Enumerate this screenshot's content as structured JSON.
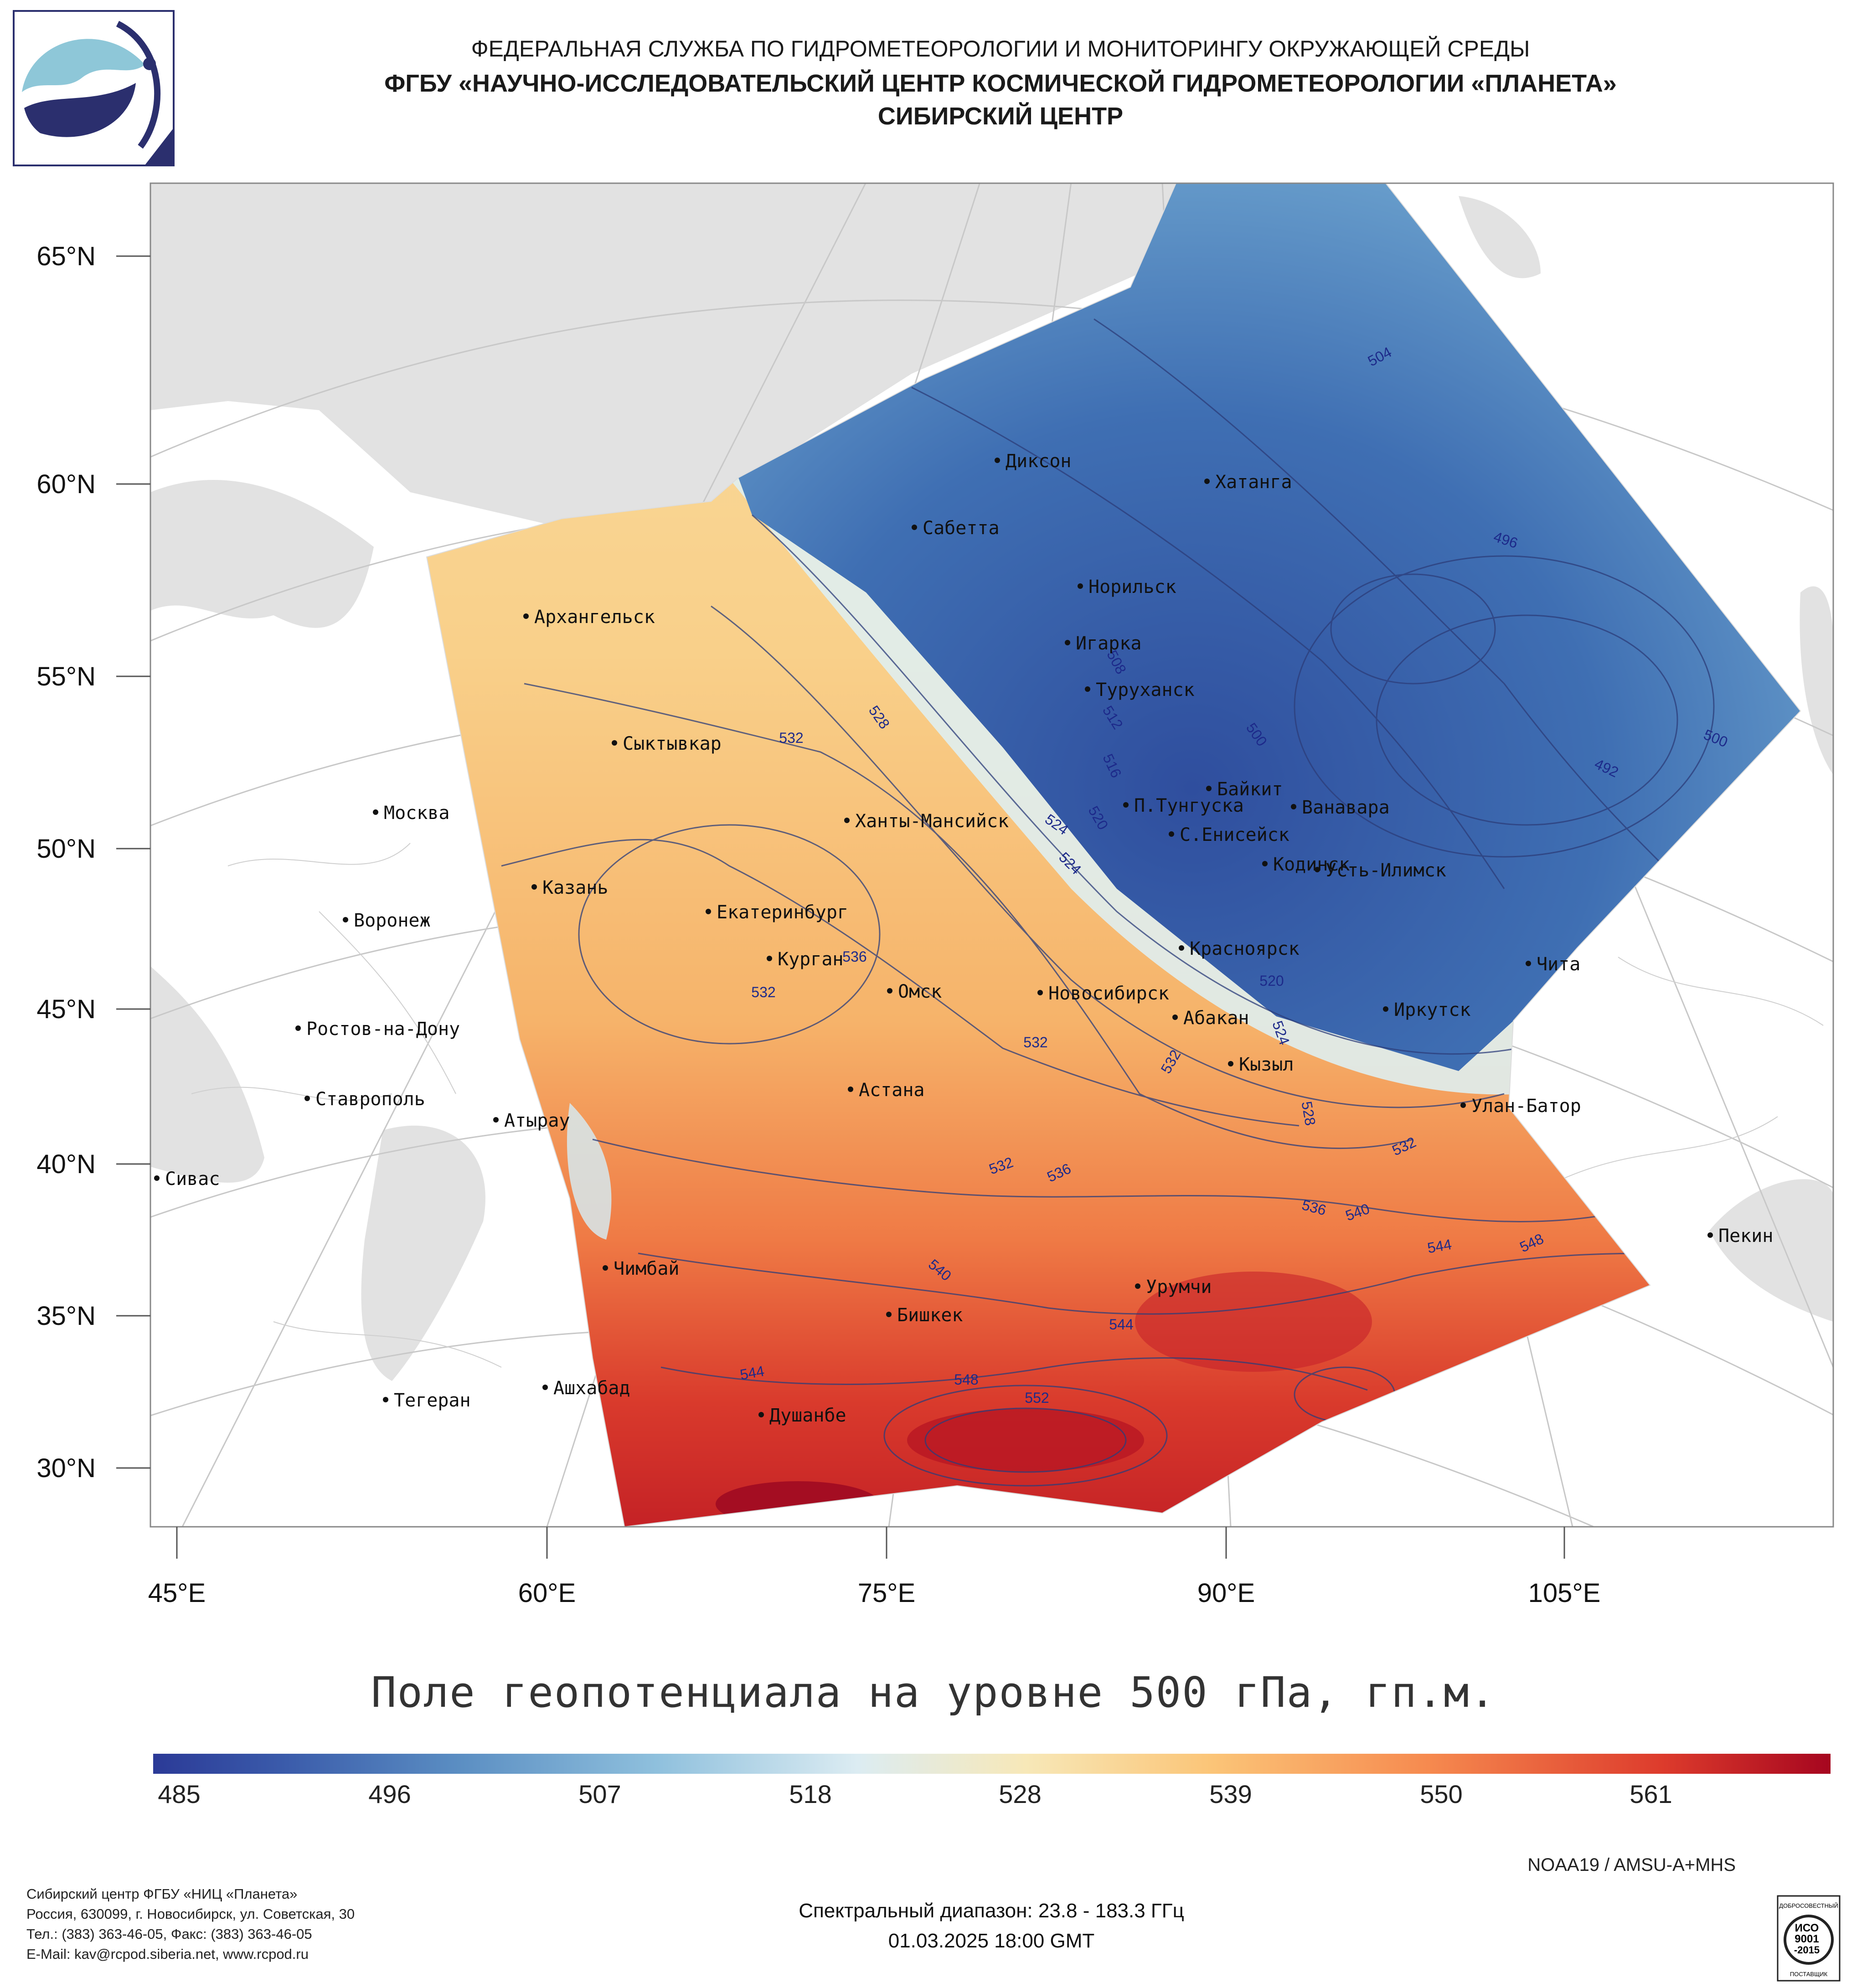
{
  "header": {
    "line1": "ФЕДЕРАЛЬНАЯ СЛУЖБА ПО ГИДРОМЕТЕОРОЛОГИИ И МОНИТОРИНГУ ОКРУЖАЮЩЕЙ СРЕДЫ",
    "line2": "ФГБУ «НАУЧНО-ИССЛЕДОВАТЕЛЬСКИЙ ЦЕНТР КОСМИЧЕСКОЙ ГИДРОМЕТЕОРОЛОГИИ «ПЛАНЕТА»",
    "line3": "СИБИРСКИЙ ЦЕНТР"
  },
  "axes": {
    "lat_labels": [
      "65°N",
      "60°N",
      "55°N",
      "50°N",
      "45°N",
      "40°N",
      "35°N",
      "30°N"
    ],
    "lon_labels": [
      "45°E",
      "60°E",
      "75°E",
      "90°E",
      "105°E"
    ]
  },
  "cities": [
    {
      "name": "Диксон"
    },
    {
      "name": "Хатанга"
    },
    {
      "name": "Сабетта"
    },
    {
      "name": "Архангельск"
    },
    {
      "name": "Норильск"
    },
    {
      "name": "Игарка"
    },
    {
      "name": "Туруханск"
    },
    {
      "name": "Сыктывкар"
    },
    {
      "name": "Байкит"
    },
    {
      "name": "Ванавара"
    },
    {
      "name": "Москва"
    },
    {
      "name": "П.Тунгуска"
    },
    {
      "name": "Ханты-Мансийск"
    },
    {
      "name": "С.Енисейск"
    },
    {
      "name": "Кодинск"
    },
    {
      "name": "Усть-Илимск"
    },
    {
      "name": "Казань"
    },
    {
      "name": "Екатеринбург"
    },
    {
      "name": "Воронеж"
    },
    {
      "name": "Красноярск"
    },
    {
      "name": "Курган"
    },
    {
      "name": "Чита"
    },
    {
      "name": "Омск"
    },
    {
      "name": "Новосибирск"
    },
    {
      "name": "Иркутск"
    },
    {
      "name": "Ростов-на-Дону"
    },
    {
      "name": "Абакан"
    },
    {
      "name": "Кызыл"
    },
    {
      "name": "Ставрополь"
    },
    {
      "name": "Астана"
    },
    {
      "name": "Улан-Батор"
    },
    {
      "name": "Атырау"
    },
    {
      "name": "Сивас"
    },
    {
      "name": "Пекин"
    },
    {
      "name": "Чимбай"
    },
    {
      "name": "Урумчи"
    },
    {
      "name": "Бишкек"
    },
    {
      "name": "Ашхабад"
    },
    {
      "name": "Тегеран"
    },
    {
      "name": "Душанбе"
    }
  ],
  "contour_labels": [
    "504",
    "496",
    "508",
    "512",
    "500",
    "528",
    "532",
    "516",
    "492",
    "520",
    "524",
    "536",
    "540",
    "544",
    "548",
    "552"
  ],
  "map_title": "Поле геопотенциала на уровне 500 гПа, гп.м.",
  "colorbar": {
    "labels": [
      "485",
      "496",
      "507",
      "518",
      "528",
      "539",
      "550",
      "561"
    ],
    "colors": [
      "#2b3a97",
      "#5a8dc2",
      "#dcecf2",
      "#f7e8b8",
      "#f68a4f",
      "#a6061f"
    ]
  },
  "footer": {
    "org_lines": [
      "Сибирский центр ФГБУ «НИЦ «Планета»",
      "Россия, 630099, г. Новосибирск, ул. Советская, 30",
      "Тел.: (383) 363-46-05, Факс: (383) 363-46-05",
      "E-Mail: kav@rcpod.siberia.net, www.rcpod.ru"
    ],
    "satellite": "NOAA19 / AMSU-A+MHS",
    "spectral": "Спектральный диапазон: 23.8 - 183.3 ГГц",
    "datetime": "01.03.2025 18:00 GMT",
    "iso_top": "ДОБРОСОВЕСТНЫЙ",
    "iso_1": "ИСО",
    "iso_2": "9001",
    "iso_3": "-2015",
    "iso_bottom": "ПОСТАВЩИК"
  }
}
